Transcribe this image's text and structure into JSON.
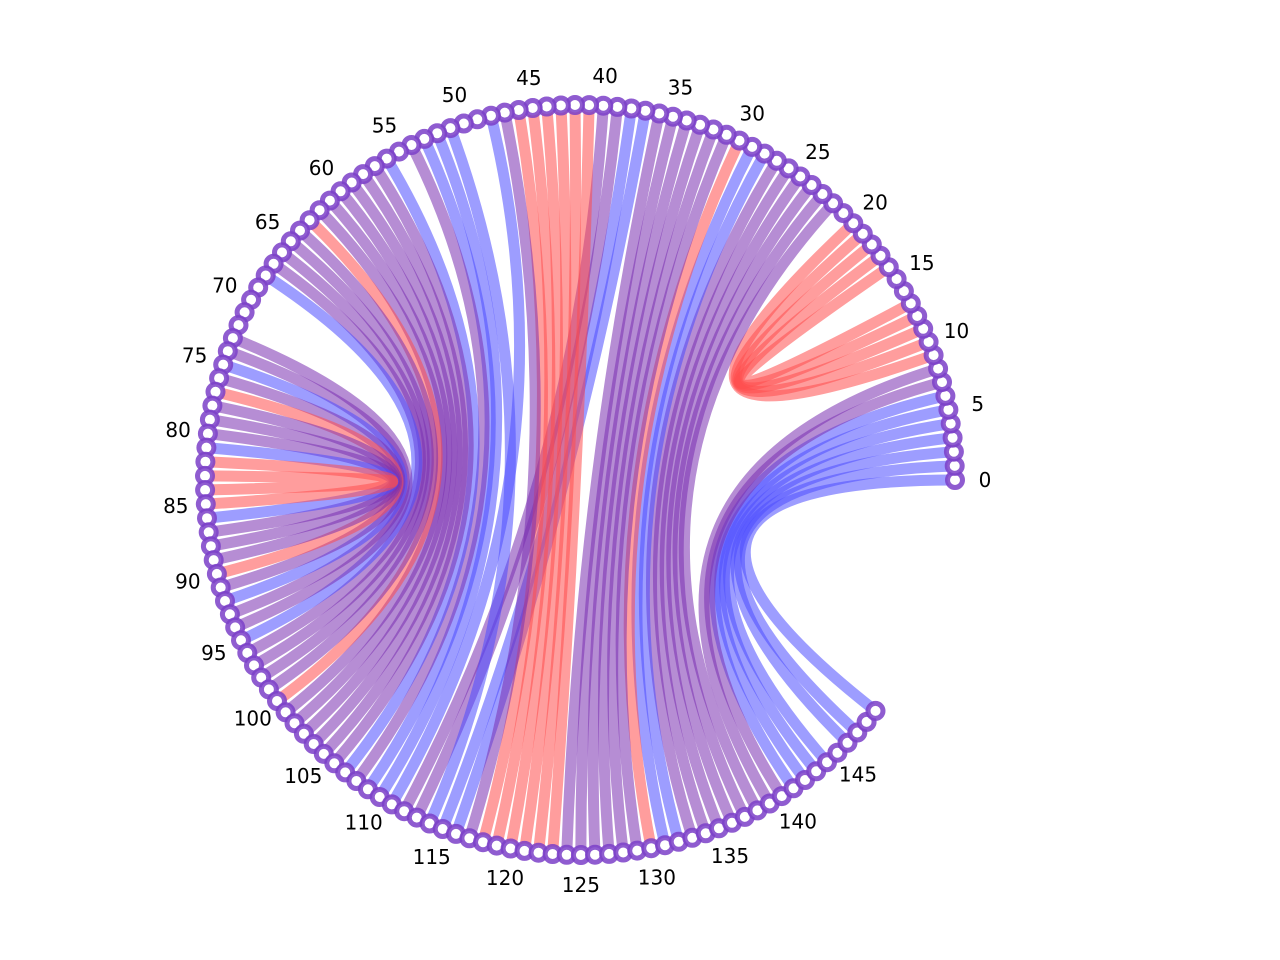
{
  "diagram": {
    "type": "arc-connection-diagram",
    "node_count": 150,
    "tick_labels": [
      "0",
      "5",
      "10",
      "15",
      "20",
      "25",
      "30",
      "35",
      "40",
      "45",
      "50",
      "55",
      "60",
      "65",
      "70",
      "75",
      "80",
      "85",
      "90",
      "95",
      "100",
      "105",
      "110",
      "115",
      "120",
      "125",
      "130",
      "135",
      "140",
      "145"
    ],
    "colors": {
      "red": "#ff4d4d",
      "blue": "#4d4dff",
      "purple": "#7a2fb0",
      "node_ring": "#7b3fc8",
      "node_center": "#ffffff",
      "background": "#ffffff"
    },
    "connections": [
      {
        "from": 0,
        "to": 149,
        "color": "blue"
      },
      {
        "from": 1,
        "to": 147,
        "color": "blue"
      },
      {
        "from": 2,
        "to": 146,
        "color": "blue"
      },
      {
        "from": 3,
        "to": 144,
        "color": "blue"
      },
      {
        "from": 4,
        "to": 143,
        "color": "blue"
      },
      {
        "from": 5,
        "to": 142,
        "color": "blue"
      },
      {
        "from": 6,
        "to": 141,
        "color": "blue"
      },
      {
        "from": 7,
        "to": 140,
        "color": "purple"
      },
      {
        "from": 8,
        "to": 139,
        "color": "purple"
      },
      {
        "from": 9,
        "to": 20,
        "color": "red"
      },
      {
        "from": 10,
        "to": 19,
        "color": "red"
      },
      {
        "from": 11,
        "to": 18,
        "color": "red"
      },
      {
        "from": 12,
        "to": 17,
        "color": "red"
      },
      {
        "from": 13,
        "to": 16,
        "color": "red"
      },
      {
        "from": 22,
        "to": 138,
        "color": "purple"
      },
      {
        "from": 23,
        "to": 137,
        "color": "purple"
      },
      {
        "from": 24,
        "to": 136,
        "color": "purple"
      },
      {
        "from": 25,
        "to": 135,
        "color": "purple"
      },
      {
        "from": 26,
        "to": 134,
        "color": "purple"
      },
      {
        "from": 27,
        "to": 133,
        "color": "purple"
      },
      {
        "from": 28,
        "to": 132,
        "color": "blue"
      },
      {
        "from": 29,
        "to": 131,
        "color": "blue"
      },
      {
        "from": 30,
        "to": 130,
        "color": "red"
      },
      {
        "from": 31,
        "to": 129,
        "color": "purple"
      },
      {
        "from": 32,
        "to": 128,
        "color": "purple"
      },
      {
        "from": 33,
        "to": 127,
        "color": "purple"
      },
      {
        "from": 34,
        "to": 126,
        "color": "purple"
      },
      {
        "from": 35,
        "to": 125,
        "color": "purple"
      },
      {
        "from": 36,
        "to": 124,
        "color": "purple"
      },
      {
        "from": 37,
        "to": 116,
        "color": "blue"
      },
      {
        "from": 38,
        "to": 115,
        "color": "blue"
      },
      {
        "from": 39,
        "to": 113,
        "color": "purple"
      },
      {
        "from": 40,
        "to": 112,
        "color": "purple"
      },
      {
        "from": 41,
        "to": 123,
        "color": "red"
      },
      {
        "from": 42,
        "to": 122,
        "color": "red"
      },
      {
        "from": 43,
        "to": 121,
        "color": "red"
      },
      {
        "from": 44,
        "to": 120,
        "color": "red"
      },
      {
        "from": 45,
        "to": 119,
        "color": "red"
      },
      {
        "from": 46,
        "to": 118,
        "color": "red"
      },
      {
        "from": 47,
        "to": 117,
        "color": "purple"
      },
      {
        "from": 48,
        "to": 111,
        "color": "blue"
      },
      {
        "from": 51,
        "to": 114,
        "color": "blue"
      },
      {
        "from": 52,
        "to": 110,
        "color": "blue"
      },
      {
        "from": 53,
        "to": 109,
        "color": "blue"
      },
      {
        "from": 54,
        "to": 108,
        "color": "purple"
      },
      {
        "from": 56,
        "to": 107,
        "color": "blue"
      },
      {
        "from": 57,
        "to": 106,
        "color": "purple"
      },
      {
        "from": 58,
        "to": 105,
        "color": "purple"
      },
      {
        "from": 59,
        "to": 104,
        "color": "purple"
      },
      {
        "from": 60,
        "to": 103,
        "color": "purple"
      },
      {
        "from": 61,
        "to": 102,
        "color": "purple"
      },
      {
        "from": 62,
        "to": 101,
        "color": "purple"
      },
      {
        "from": 63,
        "to": 100,
        "color": "red"
      },
      {
        "from": 64,
        "to": 99,
        "color": "purple"
      },
      {
        "from": 65,
        "to": 98,
        "color": "purple"
      },
      {
        "from": 66,
        "to": 97,
        "color": "purple"
      },
      {
        "from": 67,
        "to": 96,
        "color": "purple"
      },
      {
        "from": 68,
        "to": 95,
        "color": "blue"
      },
      {
        "from": 73,
        "to": 94,
        "color": "purple"
      },
      {
        "from": 74,
        "to": 93,
        "color": "purple"
      },
      {
        "from": 75,
        "to": 92,
        "color": "blue"
      },
      {
        "from": 76,
        "to": 91,
        "color": "purple"
      },
      {
        "from": 77,
        "to": 90,
        "color": "red"
      },
      {
        "from": 78,
        "to": 89,
        "color": "purple"
      },
      {
        "from": 79,
        "to": 88,
        "color": "purple"
      },
      {
        "from": 80,
        "to": 87,
        "color": "purple"
      },
      {
        "from": 81,
        "to": 86,
        "color": "blue"
      },
      {
        "from": 82,
        "to": 85,
        "color": "red"
      },
      {
        "from": 83,
        "to": 84,
        "color": "red"
      }
    ]
  }
}
